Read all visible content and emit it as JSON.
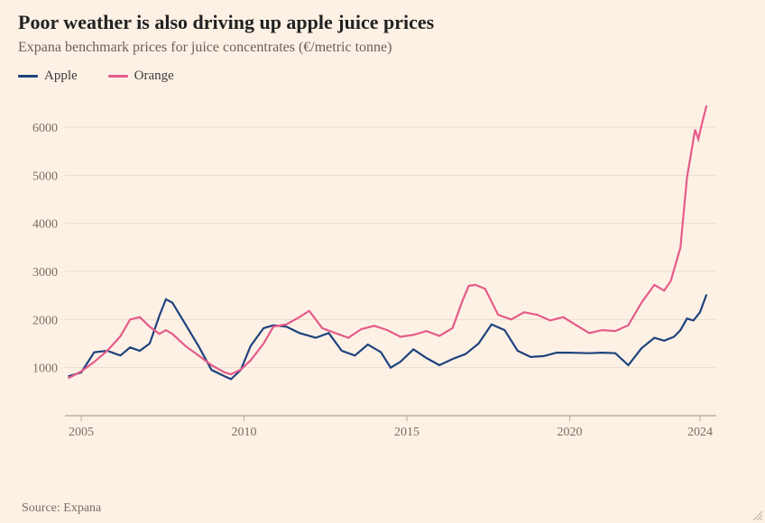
{
  "title": "Poor weather is also driving up apple juice prices",
  "subtitle": "Expana benchmark prices for juice concentrates (€/metric tonne)",
  "source": "Source: Expana",
  "chart": {
    "type": "line",
    "background_color": "#fdf1e5",
    "grid_color": "#e9dccf",
    "axis_color": "#9c8e80",
    "text_color": "#7a6e64",
    "title_fontsize": 22,
    "subtitle_fontsize": 16,
    "label_fontsize": 14,
    "line_width": 2.2,
    "x_domain": [
      2004.5,
      2024.5
    ],
    "y_domain": [
      0,
      6600
    ],
    "y_ticks": [
      1000,
      2000,
      3000,
      4000,
      5000,
      6000
    ],
    "x_ticks": [
      2005,
      2010,
      2015,
      2020,
      2024
    ],
    "series": [
      {
        "name": "Apple",
        "color": "#1f427d",
        "points": [
          [
            2004.6,
            820
          ],
          [
            2005.0,
            900
          ],
          [
            2005.4,
            1320
          ],
          [
            2005.8,
            1350
          ],
          [
            2006.2,
            1250
          ],
          [
            2006.5,
            1420
          ],
          [
            2006.8,
            1350
          ],
          [
            2007.1,
            1500
          ],
          [
            2007.4,
            2080
          ],
          [
            2007.6,
            2420
          ],
          [
            2007.8,
            2350
          ],
          [
            2008.2,
            1900
          ],
          [
            2008.6,
            1450
          ],
          [
            2009.0,
            950
          ],
          [
            2009.4,
            820
          ],
          [
            2009.6,
            760
          ],
          [
            2009.9,
            950
          ],
          [
            2010.2,
            1450
          ],
          [
            2010.6,
            1820
          ],
          [
            2010.9,
            1880
          ],
          [
            2011.3,
            1850
          ],
          [
            2011.7,
            1720
          ],
          [
            2012.2,
            1620
          ],
          [
            2012.6,
            1720
          ],
          [
            2013.0,
            1350
          ],
          [
            2013.4,
            1250
          ],
          [
            2013.8,
            1480
          ],
          [
            2014.2,
            1320
          ],
          [
            2014.5,
            1000
          ],
          [
            2014.8,
            1120
          ],
          [
            2015.2,
            1380
          ],
          [
            2015.6,
            1200
          ],
          [
            2016.0,
            1050
          ],
          [
            2016.4,
            1180
          ],
          [
            2016.8,
            1280
          ],
          [
            2017.2,
            1500
          ],
          [
            2017.6,
            1900
          ],
          [
            2018.0,
            1780
          ],
          [
            2018.4,
            1350
          ],
          [
            2018.8,
            1220
          ],
          [
            2019.2,
            1240
          ],
          [
            2019.6,
            1310
          ],
          [
            2020.0,
            1310
          ],
          [
            2020.6,
            1300
          ],
          [
            2021.0,
            1310
          ],
          [
            2021.4,
            1300
          ],
          [
            2021.8,
            1050
          ],
          [
            2022.2,
            1400
          ],
          [
            2022.6,
            1620
          ],
          [
            2022.9,
            1560
          ],
          [
            2023.2,
            1640
          ],
          [
            2023.4,
            1780
          ],
          [
            2023.6,
            2020
          ],
          [
            2023.8,
            1980
          ],
          [
            2024.0,
            2150
          ],
          [
            2024.2,
            2520
          ]
        ]
      },
      {
        "name": "Orange",
        "color": "#e55b8a",
        "points": [
          [
            2004.6,
            780
          ],
          [
            2005.0,
            920
          ],
          [
            2005.4,
            1120
          ],
          [
            2005.8,
            1350
          ],
          [
            2006.2,
            1650
          ],
          [
            2006.5,
            2000
          ],
          [
            2006.8,
            2050
          ],
          [
            2007.1,
            1850
          ],
          [
            2007.4,
            1700
          ],
          [
            2007.6,
            1780
          ],
          [
            2007.8,
            1700
          ],
          [
            2008.2,
            1450
          ],
          [
            2008.6,
            1250
          ],
          [
            2009.0,
            1050
          ],
          [
            2009.4,
            900
          ],
          [
            2009.6,
            860
          ],
          [
            2009.9,
            960
          ],
          [
            2010.2,
            1150
          ],
          [
            2010.6,
            1500
          ],
          [
            2010.9,
            1850
          ],
          [
            2011.3,
            1900
          ],
          [
            2011.7,
            2050
          ],
          [
            2012.0,
            2180
          ],
          [
            2012.4,
            1820
          ],
          [
            2012.8,
            1720
          ],
          [
            2013.2,
            1620
          ],
          [
            2013.6,
            1800
          ],
          [
            2014.0,
            1870
          ],
          [
            2014.4,
            1780
          ],
          [
            2014.8,
            1640
          ],
          [
            2015.2,
            1680
          ],
          [
            2015.6,
            1760
          ],
          [
            2016.0,
            1660
          ],
          [
            2016.4,
            1820
          ],
          [
            2016.7,
            2380
          ],
          [
            2016.9,
            2700
          ],
          [
            2017.1,
            2720
          ],
          [
            2017.4,
            2640
          ],
          [
            2017.8,
            2100
          ],
          [
            2018.2,
            2000
          ],
          [
            2018.6,
            2150
          ],
          [
            2019.0,
            2100
          ],
          [
            2019.4,
            1980
          ],
          [
            2019.8,
            2050
          ],
          [
            2020.2,
            1880
          ],
          [
            2020.6,
            1720
          ],
          [
            2021.0,
            1780
          ],
          [
            2021.4,
            1760
          ],
          [
            2021.8,
            1880
          ],
          [
            2022.2,
            2350
          ],
          [
            2022.6,
            2720
          ],
          [
            2022.9,
            2600
          ],
          [
            2023.1,
            2800
          ],
          [
            2023.4,
            3500
          ],
          [
            2023.6,
            4950
          ],
          [
            2023.7,
            5350
          ],
          [
            2023.85,
            5950
          ],
          [
            2023.95,
            5750
          ],
          [
            2024.05,
            6050
          ],
          [
            2024.2,
            6450
          ]
        ]
      }
    ]
  }
}
